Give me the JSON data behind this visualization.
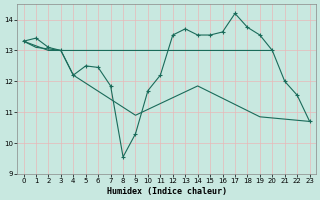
{
  "xlabel": "Humidex (Indice chaleur)",
  "bg_color": "#c8e8e0",
  "line_color": "#1a6b5a",
  "grid_color": "#e8b8b8",
  "ylim": [
    9,
    14.5
  ],
  "xlim": [
    -0.5,
    23.5
  ],
  "yticks": [
    9,
    10,
    11,
    12,
    13,
    14
  ],
  "xticks": [
    0,
    1,
    2,
    3,
    4,
    5,
    6,
    7,
    8,
    9,
    10,
    11,
    12,
    13,
    14,
    15,
    16,
    17,
    18,
    19,
    20,
    21,
    22,
    23
  ],
  "series1_x": [
    0,
    1,
    2,
    3,
    4,
    5,
    6,
    7,
    8,
    9,
    10,
    11,
    12,
    13,
    14,
    15,
    16,
    17,
    18,
    19,
    20,
    21,
    22,
    23
  ],
  "series1_y": [
    13.3,
    13.4,
    13.1,
    13.0,
    12.2,
    12.5,
    12.45,
    11.85,
    9.55,
    10.3,
    11.7,
    12.2,
    13.5,
    13.7,
    13.5,
    13.5,
    13.6,
    14.2,
    13.75,
    13.5,
    13.0,
    12.0,
    11.55,
    10.7
  ],
  "series2_x": [
    0,
    2,
    3,
    4,
    5,
    6,
    19,
    20
  ],
  "series2_y": [
    13.3,
    13.0,
    13.0,
    13.0,
    13.0,
    13.0,
    13.0,
    13.0
  ],
  "series3_x": [
    0,
    1,
    3,
    4,
    9,
    14,
    19,
    23
  ],
  "series3_y": [
    13.3,
    13.1,
    13.0,
    12.2,
    10.9,
    11.85,
    10.85,
    10.7
  ]
}
